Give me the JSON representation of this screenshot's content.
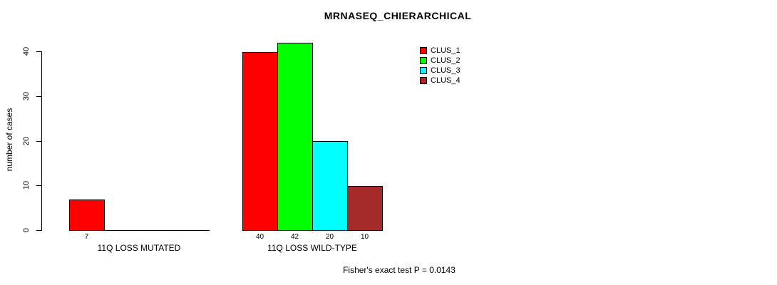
{
  "chart_data": {
    "type": "bar",
    "title": "MRNASEQ_CHIERARCHICAL",
    "ylabel": "number of cases",
    "xlabel": "",
    "ylim": [
      0,
      40
    ],
    "yticks": [
      0,
      10,
      20,
      30,
      40
    ],
    "grid": false,
    "legend_position": "top-right",
    "categories": [
      "11Q LOSS MUTATED",
      "11Q LOSS WILD-TYPE"
    ],
    "series": [
      {
        "name": "CLUS_1",
        "color": "#FF0000",
        "values": [
          7,
          40
        ]
      },
      {
        "name": "CLUS_2",
        "color": "#00FF00",
        "values": [
          0,
          42
        ]
      },
      {
        "name": "CLUS_3",
        "color": "#00FFFF",
        "values": [
          0,
          20
        ]
      },
      {
        "name": "CLUS_4",
        "color": "#A52A2A",
        "values": [
          0,
          10
        ]
      }
    ],
    "annotation": "Fisher's exact test P = 0.0143"
  }
}
